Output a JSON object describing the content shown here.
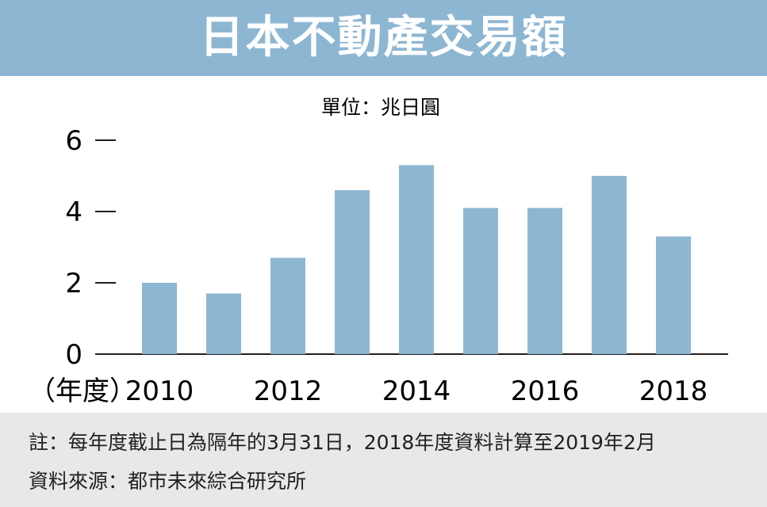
{
  "title": "日本不動產交易額",
  "chart_data": {
    "type": "bar",
    "title": "日本不動產交易額",
    "unit_label": "單位：兆日圓",
    "xlabel": "（年度）",
    "categories": [
      "2010",
      "2011",
      "2012",
      "2013",
      "2014",
      "2015",
      "2016",
      "2017",
      "2018"
    ],
    "values": [
      2.0,
      1.7,
      2.7,
      4.6,
      5.3,
      4.1,
      4.1,
      5.0,
      3.3
    ],
    "x_tick_labels": [
      "2010",
      "2012",
      "2014",
      "2016",
      "2018"
    ],
    "y_ticks": [
      "0",
      "2",
      "4",
      "6"
    ],
    "ylim": [
      0,
      6
    ],
    "bar_color": "#8db6d3",
    "grid": false,
    "legend": "none"
  },
  "footer": {
    "note": "註：每年度截止日為隔年的3月31日，2018年度資料計算至2019年2月",
    "source": "資料來源：都市未來綜合研究所"
  }
}
